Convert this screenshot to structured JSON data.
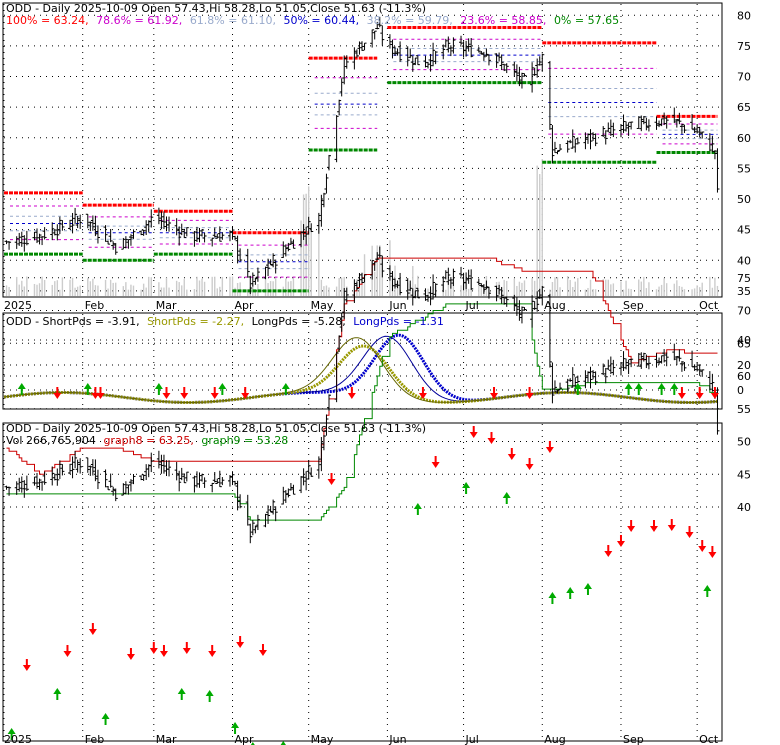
{
  "colors": {
    "price": "#000000",
    "fib100": "#ff0000",
    "fib786": "#cc00cc",
    "fib618": "#99aacc",
    "fib50": "#0000cc",
    "fib382": "#99aacc",
    "fib236": "#cc00cc",
    "fib0": "#008800",
    "support": "#008800",
    "resistance": "#ff0000",
    "shortPds": "#999900",
    "longPds": "#0000cc",
    "longPdsThin": "#000099",
    "graph8": "#cc0000",
    "graph9": "#008800",
    "volume": "#cccccc",
    "arrowUp": "#00aa00",
    "arrowDown": "#ff0000"
  },
  "panel1": {
    "header": "ODD - Daily 2025-10-09 Open 57.43,Hi 58.28,Lo 51.05,Close 51.63 (-11.3%)",
    "fib": [
      {
        "label": "100% = 63.24,",
        "color": "#ff0000"
      },
      {
        "label": "78.6% = 61.92,",
        "color": "#cc00cc"
      },
      {
        "label": "61.8% = 61.10,",
        "color": "#99aacc"
      },
      {
        "label": "50% = 60.44,",
        "color": "#0000cc"
      },
      {
        "label": "38.2% = 59.79,",
        "color": "#99aacc"
      },
      {
        "label": "23.6% = 58.85,",
        "color": "#cc00cc"
      },
      {
        "label": "0% = 57.65",
        "color": "#008800"
      }
    ],
    "yticks": [
      "80",
      "75",
      "70",
      "65",
      "60",
      "55",
      "50",
      "45",
      "40",
      "35"
    ]
  },
  "panel2": {
    "legend": [
      {
        "label": "ODD - ShortPds = -3.91,",
        "color": "#000000"
      },
      {
        "label": "ShortPds = -2.27,",
        "color": "#999900"
      },
      {
        "label": "LongPds = -5.28,",
        "color": "#000000"
      },
      {
        "label": "LongPds = -1.31",
        "color": "#0000cc"
      }
    ],
    "yticks": [
      "40",
      "20",
      "0"
    ]
  },
  "panel3": {
    "header": "ODD - Daily 2025-10-09 Open 57.43,Hi 58.28,Lo 51.05,Close 51.63 (-11.3%)",
    "legend": [
      {
        "label": "Vol 266,765,904",
        "color": "#000000"
      },
      {
        "label": "graph8 = 63.25,",
        "color": "#cc0000"
      },
      {
        "label": "graph9 = 53.28",
        "color": "#008800"
      }
    ],
    "yticks": [
      "75",
      "70",
      "65",
      "60",
      "55",
      "50",
      "45",
      "40"
    ]
  },
  "xaxis": {
    "labels": [
      "2025",
      "Feb",
      "Mar",
      "Apr",
      "May",
      "Jun",
      "Jul",
      "Aug",
      "Sep",
      "Oct"
    ]
  },
  "chart_data": {
    "type": "line",
    "title": "ODD - Daily 2025-10-09",
    "ohlc_last": {
      "open": 57.43,
      "high": 58.28,
      "low": 51.05,
      "close": 51.63,
      "change_pct": -11.3
    },
    "volume": 266765904,
    "x": [
      "2025-01-02",
      "2025-01-15",
      "2025-02-01",
      "2025-02-15",
      "2025-03-01",
      "2025-03-15",
      "2025-04-01",
      "2025-04-08",
      "2025-04-22",
      "2025-05-05",
      "2025-05-15",
      "2025-05-28",
      "2025-06-01",
      "2025-06-15",
      "2025-06-25",
      "2025-07-10",
      "2025-07-25",
      "2025-08-01",
      "2025-08-05",
      "2025-08-20",
      "2025-09-05",
      "2025-09-20",
      "2025-10-01",
      "2025-10-08",
      "2025-10-09"
    ],
    "series": [
      {
        "name": "Close",
        "values": [
          43,
          44,
          47,
          42,
          47,
          44,
          44,
          36,
          42,
          47,
          72,
          78,
          75,
          72,
          75,
          74,
          69,
          73,
          58,
          60,
          62,
          63,
          61,
          58,
          51.6
        ]
      },
      {
        "name": "graph8",
        "values": [
          49,
          45,
          49,
          49,
          47,
          47,
          47,
          47,
          47,
          47,
          71,
          78,
          78,
          78,
          78,
          78,
          76,
          76,
          76,
          76,
          62,
          64,
          63.5,
          63.3,
          63.25
        ]
      },
      {
        "name": "graph9",
        "values": [
          42,
          42,
          42,
          42,
          42,
          42,
          42,
          38,
          38,
          38,
          43,
          60,
          66,
          69,
          71,
          71,
          71,
          58,
          58,
          59,
          59,
          59,
          59,
          57,
          53.28
        ]
      }
    ],
    "fib_levels": {
      "100%": 63.24,
      "78.6%": 61.92,
      "61.8%": 61.1,
      "50%": 60.44,
      "38.2%": 59.79,
      "23.6%": 58.85,
      "0%": 57.65
    },
    "oscillator": {
      "ShortPds": [
        -3.91,
        -2.27
      ],
      "LongPds": [
        -5.28,
        -1.31
      ]
    },
    "ylim_price": [
      34,
      82
    ]
  }
}
